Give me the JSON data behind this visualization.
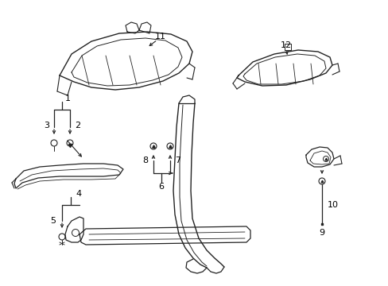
{
  "background_color": "#ffffff",
  "line_color": "#222222",
  "text_color": "#000000",
  "fig_width": 4.89,
  "fig_height": 3.6,
  "dpi": 100
}
